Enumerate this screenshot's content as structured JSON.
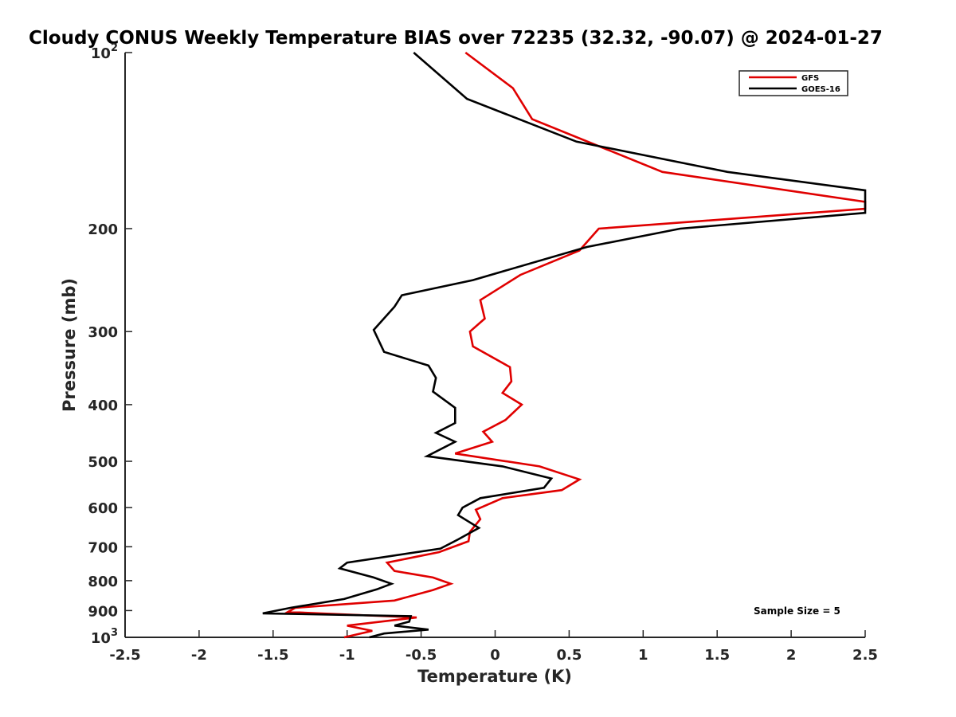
{
  "chart_data": {
    "type": "line",
    "title": "Cloudy CONUS Weekly Temperature BIAS over 72235 (32.32, -90.07) @ 2024-01-27",
    "xlabel": "Temperature (K)",
    "ylabel": "Pressure (mb)",
    "xlim": [
      -2.5,
      2.5
    ],
    "ylim": [
      100,
      1000
    ],
    "y_scale": "log",
    "y_reversed": true,
    "grid": false,
    "legend_position": "top-right",
    "x_ticks": [
      -2.5,
      -2,
      -1.5,
      -1,
      -0.5,
      0,
      0.5,
      1,
      1.5,
      2,
      2.5
    ],
    "x_tick_labels": [
      "-2.5",
      "-2",
      "-1.5",
      "-1",
      "-0.5",
      "0",
      "0.5",
      "1",
      "1.5",
      "2",
      "2.5"
    ],
    "y_ticks": [
      {
        "value": 100,
        "base": "10",
        "exp": "2"
      },
      {
        "value": 200,
        "label": "200"
      },
      {
        "value": 300,
        "label": "300"
      },
      {
        "value": 400,
        "label": "400"
      },
      {
        "value": 500,
        "label": "500"
      },
      {
        "value": 600,
        "label": "600"
      },
      {
        "value": 700,
        "label": "700"
      },
      {
        "value": 800,
        "label": "800"
      },
      {
        "value": 900,
        "label": "900"
      },
      {
        "value": 1000,
        "base": "10",
        "exp": "3"
      }
    ],
    "annotation": "Sample Size = 5",
    "series": [
      {
        "name": "GFS",
        "color": "#e00000",
        "points": [
          [
            -0.2,
            100
          ],
          [
            0.12,
            115
          ],
          [
            0.25,
            130
          ],
          [
            1.13,
            160
          ],
          [
            2.5,
            180
          ],
          [
            2.5,
            185
          ],
          [
            0.7,
            200
          ],
          [
            0.57,
            218
          ],
          [
            0.17,
            240
          ],
          [
            -0.1,
            265
          ],
          [
            -0.07,
            285
          ],
          [
            -0.17,
            300
          ],
          [
            -0.15,
            318
          ],
          [
            0.1,
            345
          ],
          [
            0.11,
            365
          ],
          [
            0.05,
            382
          ],
          [
            0.18,
            400
          ],
          [
            0.07,
            425
          ],
          [
            -0.08,
            445
          ],
          [
            -0.02,
            463
          ],
          [
            -0.27,
            485
          ],
          [
            0.3,
            510
          ],
          [
            0.57,
            537
          ],
          [
            0.45,
            560
          ],
          [
            0.05,
            578
          ],
          [
            -0.13,
            605
          ],
          [
            -0.1,
            628
          ],
          [
            -0.17,
            660
          ],
          [
            -0.18,
            685
          ],
          [
            -0.38,
            715
          ],
          [
            -0.73,
            745
          ],
          [
            -0.68,
            770
          ],
          [
            -0.42,
            790
          ],
          [
            -0.3,
            810
          ],
          [
            -0.42,
            830
          ],
          [
            -0.68,
            865
          ],
          [
            -1.35,
            890
          ],
          [
            -1.4,
            905
          ],
          [
            -0.53,
            925
          ],
          [
            -1.0,
            955
          ],
          [
            -0.83,
            975
          ],
          [
            -1.02,
            1000
          ]
        ]
      },
      {
        "name": "GOES-16",
        "color": "#000000",
        "points": [
          [
            -0.55,
            100
          ],
          [
            -0.19,
            120
          ],
          [
            0.55,
            142
          ],
          [
            1.57,
            160
          ],
          [
            2.5,
            172
          ],
          [
            2.5,
            188
          ],
          [
            1.25,
            200
          ],
          [
            0.62,
            215
          ],
          [
            -0.15,
            245
          ],
          [
            -0.63,
            260
          ],
          [
            -0.68,
            272
          ],
          [
            -0.82,
            298
          ],
          [
            -0.75,
            325
          ],
          [
            -0.45,
            343
          ],
          [
            -0.4,
            360
          ],
          [
            -0.42,
            380
          ],
          [
            -0.27,
            405
          ],
          [
            -0.27,
            430
          ],
          [
            -0.4,
            447
          ],
          [
            -0.27,
            463
          ],
          [
            -0.46,
            490
          ],
          [
            0.05,
            510
          ],
          [
            0.38,
            535
          ],
          [
            0.33,
            555
          ],
          [
            -0.1,
            578
          ],
          [
            -0.22,
            600
          ],
          [
            -0.25,
            618
          ],
          [
            -0.11,
            650
          ],
          [
            -0.25,
            680
          ],
          [
            -0.37,
            705
          ],
          [
            -1.0,
            745
          ],
          [
            -1.05,
            762
          ],
          [
            -0.82,
            790
          ],
          [
            -0.7,
            810
          ],
          [
            -0.8,
            828
          ],
          [
            -1.02,
            860
          ],
          [
            -1.38,
            890
          ],
          [
            -1.57,
            910
          ],
          [
            -0.57,
            920
          ],
          [
            -0.58,
            940
          ],
          [
            -0.68,
            955
          ],
          [
            -0.45,
            970
          ],
          [
            -0.75,
            985
          ],
          [
            -0.85,
            1000
          ]
        ]
      }
    ]
  }
}
